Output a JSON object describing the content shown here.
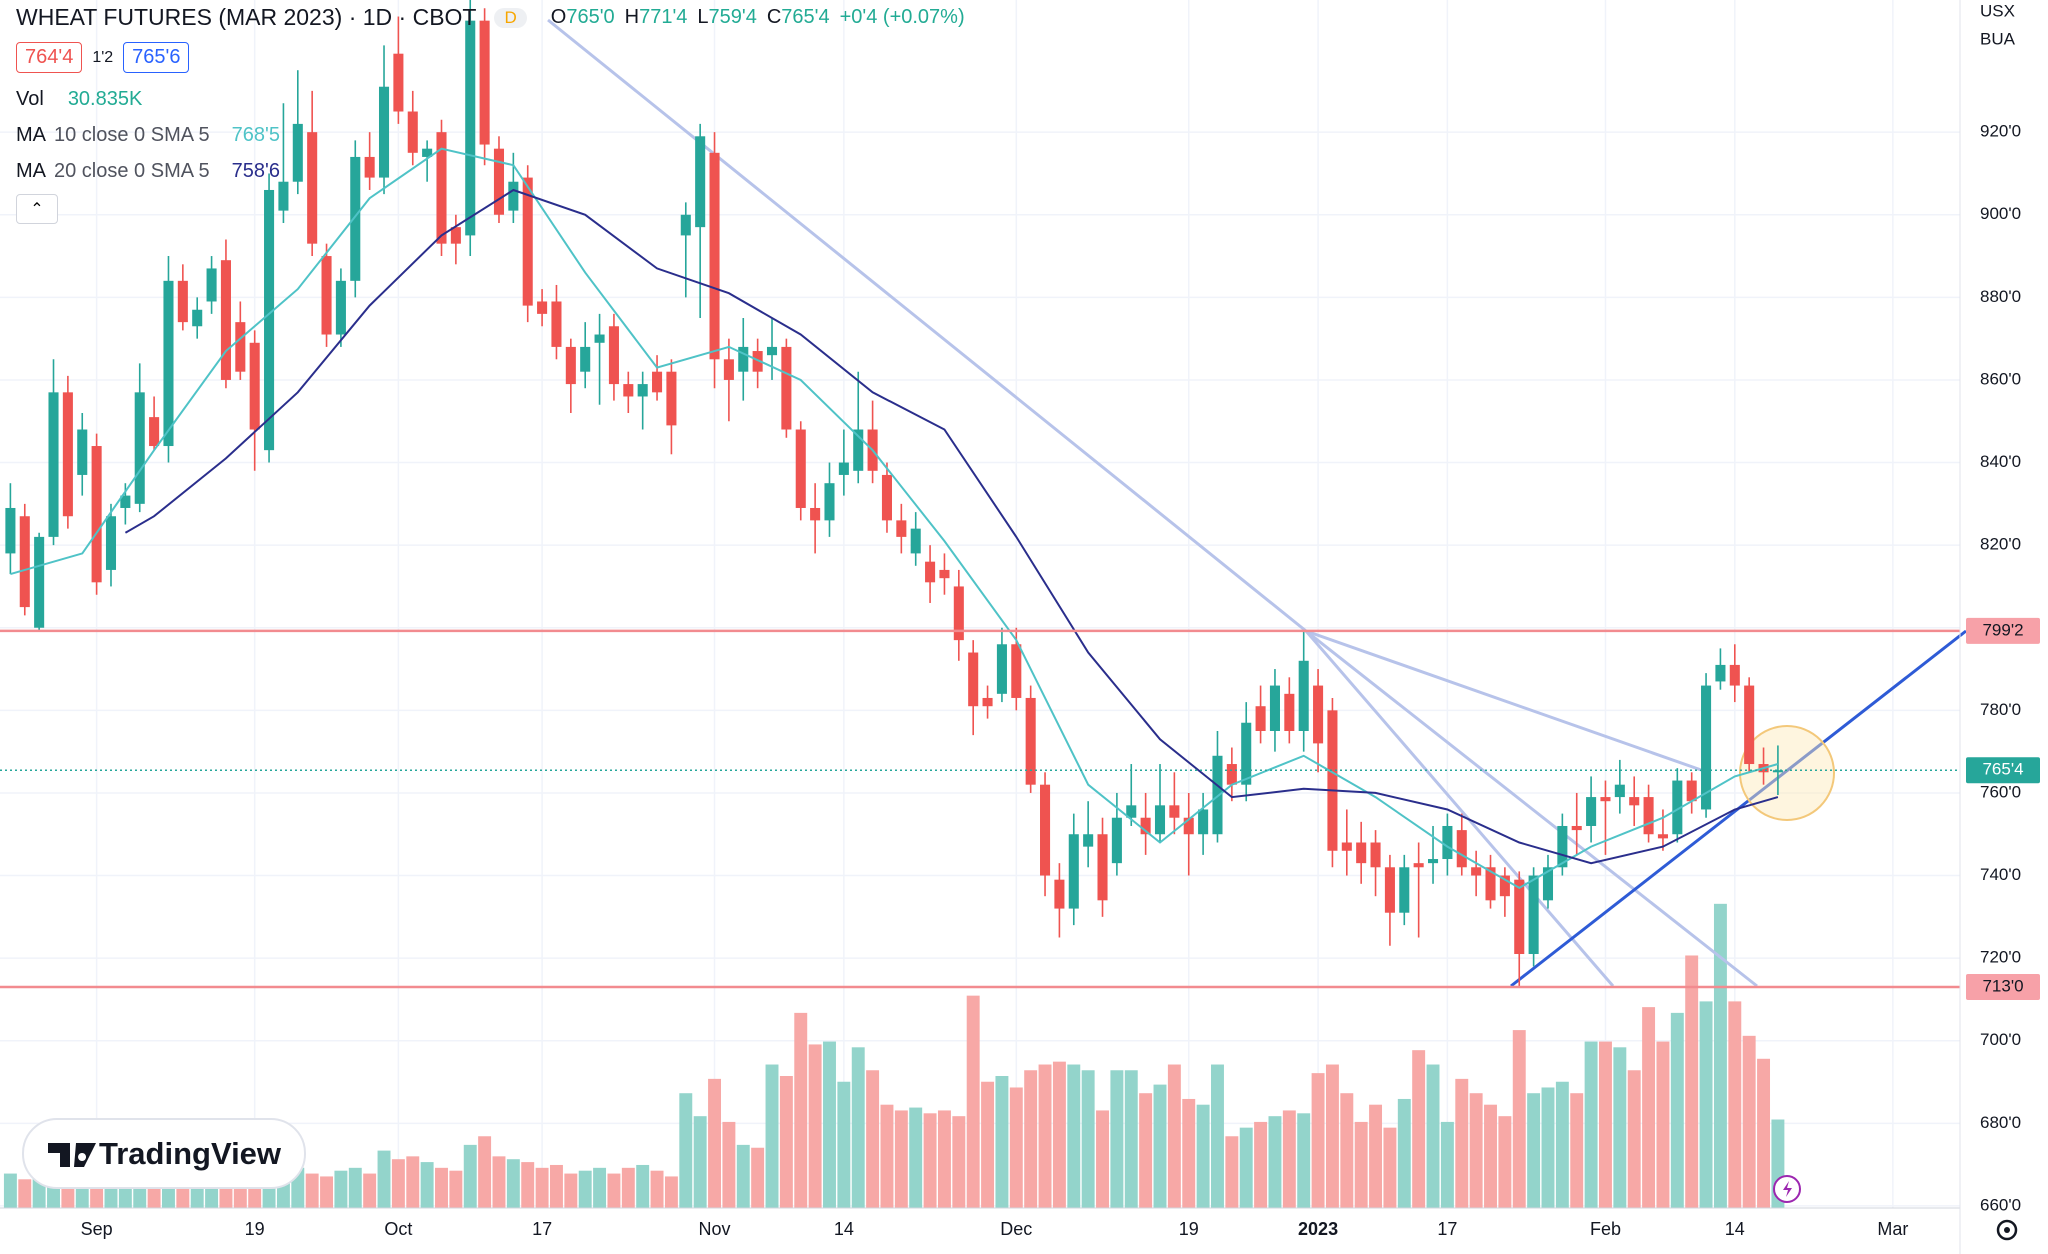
{
  "chart_data": {
    "type": "candlestick",
    "title": "WHEAT FUTURES (MAR 2023) · 1D · CBOT",
    "interval_badge": "D",
    "ohlc_legend": [
      {
        "key": "O",
        "value": "765'0"
      },
      {
        "key": "H",
        "value": "771'4"
      },
      {
        "key": "L",
        "value": "759'4"
      },
      {
        "key": "C",
        "value": "765'4"
      }
    ],
    "change": "+0'4 (+0.07%)",
    "bid": "764'4",
    "spread": "1'2",
    "ask": "765'6",
    "volume_legend": {
      "label": "Vol",
      "value": "30.835K"
    },
    "currency": "USX",
    "unit": "BUA",
    "logo": "TradingView",
    "up_color": "#26a69a",
    "down_color": "#ef5350",
    "vol_up_color": "#93d4cb",
    "vol_down_color": "#f7a8a6",
    "open": [
      818,
      827,
      800,
      822,
      857,
      837,
      844,
      814,
      829,
      830,
      851,
      844,
      884,
      873,
      879,
      889,
      874,
      869,
      843,
      901,
      908,
      920,
      890,
      871,
      884,
      914,
      909,
      939,
      925,
      914,
      920,
      897,
      895,
      947,
      916,
      901,
      909,
      879,
      879,
      868,
      862,
      869,
      873,
      859,
      856,
      862,
      862,
      895,
      897,
      915,
      865,
      862,
      867,
      866,
      868,
      848,
      829,
      826,
      837,
      838,
      848,
      837,
      826,
      818,
      816,
      814,
      810,
      794,
      783,
      784,
      796,
      783,
      762,
      739,
      732,
      747,
      750,
      743,
      754,
      754,
      750,
      757,
      754,
      750,
      750,
      767,
      762,
      781,
      775,
      784,
      775,
      786,
      780,
      748,
      748,
      748,
      742,
      731,
      743,
      743,
      744,
      751,
      742,
      742,
      740,
      739,
      721,
      734,
      742,
      752,
      752,
      759,
      759,
      759,
      759,
      750,
      750,
      763,
      756,
      787,
      791,
      786,
      767,
      765
    ],
    "high": [
      835,
      830,
      823,
      865,
      861,
      852,
      847,
      830,
      835,
      864,
      856,
      890,
      888,
      880,
      890,
      894,
      879,
      872,
      910,
      927,
      935,
      930,
      893,
      887,
      918,
      920,
      941,
      948,
      930,
      918,
      923,
      900,
      952,
      950,
      919,
      915,
      912,
      882,
      883,
      870,
      874,
      876,
      876,
      862,
      862,
      866,
      865,
      903,
      922,
      920,
      870,
      875,
      870,
      875,
      870,
      850,
      835,
      840,
      848,
      862,
      855,
      840,
      830,
      828,
      820,
      818,
      814,
      797,
      786,
      800,
      800,
      786,
      765,
      743,
      755,
      758,
      754,
      760,
      767,
      760,
      767,
      765,
      760,
      760,
      775,
      771,
      782,
      786,
      790,
      788,
      799,
      790,
      783,
      756,
      753,
      751,
      745,
      745,
      748,
      752,
      755,
      755,
      746,
      745,
      742,
      741,
      742,
      745,
      755,
      760,
      764,
      763,
      768,
      764,
      762,
      756,
      766,
      765,
      789,
      795,
      796,
      788,
      771,
      771.5
    ],
    "low": [
      813,
      803,
      799,
      820,
      824,
      832,
      808,
      810,
      825,
      828,
      843,
      840,
      872,
      870,
      876,
      858,
      860,
      838,
      840,
      898,
      905,
      890,
      868,
      868,
      880,
      906,
      905,
      922,
      912,
      908,
      890,
      888,
      890,
      912,
      898,
      898,
      874,
      873,
      865,
      852,
      858,
      854,
      855,
      852,
      848,
      855,
      842,
      880,
      875,
      858,
      850,
      855,
      858,
      860,
      846,
      826,
      818,
      822,
      832,
      835,
      835,
      823,
      818,
      815,
      806,
      808,
      792,
      774,
      778,
      782,
      780,
      760,
      735,
      725,
      728,
      742,
      730,
      740,
      752,
      745,
      748,
      750,
      740,
      745,
      748,
      758,
      758,
      772,
      770,
      772,
      770,
      765,
      742,
      740,
      738,
      735,
      723,
      728,
      725,
      738,
      740,
      740,
      735,
      732,
      730,
      713,
      718,
      732,
      740,
      745,
      748,
      745,
      755,
      752,
      748,
      746,
      748,
      755,
      754,
      785,
      782,
      765,
      762,
      759.5
    ],
    "close": [
      829,
      805,
      822,
      857,
      827,
      848,
      811,
      827,
      832,
      857,
      844,
      884,
      874,
      877,
      887,
      860,
      862,
      848,
      906,
      908,
      922,
      893,
      871,
      884,
      914,
      909,
      931,
      925,
      915,
      916,
      893,
      893,
      947,
      917,
      900,
      908,
      878,
      876,
      868,
      859,
      868,
      871,
      859,
      856,
      859,
      857,
      849,
      900,
      919,
      865,
      860,
      868,
      862,
      868,
      848,
      829,
      826,
      835,
      840,
      848,
      838,
      826,
      822,
      824,
      811,
      812,
      797,
      781,
      781,
      796,
      783,
      762,
      740,
      732,
      750,
      750,
      734,
      754,
      757,
      750,
      757,
      754,
      750,
      756,
      769,
      762,
      777,
      775,
      786,
      775,
      792,
      772,
      746,
      746,
      743,
      742,
      731,
      742,
      742,
      744,
      752,
      742,
      740,
      734,
      735,
      721,
      740,
      742,
      752,
      751,
      759,
      758,
      762,
      757,
      750,
      749,
      763,
      758,
      786,
      791,
      786,
      767,
      765,
      765.5
    ],
    "volume": [
      12,
      10,
      11,
      13,
      14,
      12,
      11,
      10,
      13,
      12,
      11,
      14,
      12,
      10,
      11,
      13,
      12,
      14,
      15,
      13,
      14,
      12,
      11,
      13,
      14,
      12,
      20,
      17,
      18,
      16,
      14,
      13,
      22,
      25,
      18,
      17,
      16,
      14,
      15,
      12,
      13,
      14,
      12,
      14,
      15,
      13,
      11,
      40,
      32,
      45,
      30,
      22,
      21,
      50,
      46,
      68,
      57,
      58,
      44,
      56,
      48,
      36,
      34,
      35,
      33,
      34,
      32,
      74,
      44,
      46,
      42,
      48,
      50,
      51,
      50,
      48,
      34,
      48,
      48,
      40,
      43,
      50,
      38,
      36,
      50,
      25,
      28,
      30,
      32,
      34,
      33,
      47,
      50,
      40,
      30,
      36,
      28,
      38,
      55,
      50,
      30,
      45,
      40,
      36,
      32,
      62,
      40,
      42,
      44,
      40,
      58,
      58,
      56,
      48,
      70,
      58,
      68,
      88,
      72,
      106,
      72,
      60,
      52,
      30.835
    ],
    "volume_lim": [
      0,
      115
    ],
    "moving_averages": [
      {
        "label": "MA",
        "params": "10 close 0 SMA 5",
        "last": "768'5",
        "color": "#4fc3c7",
        "x": [
          0,
          5,
          10,
          15,
          20,
          25,
          30,
          35,
          40,
          45,
          50,
          55,
          60,
          65,
          70,
          75,
          80,
          85,
          90,
          95,
          100,
          105,
          110,
          115,
          120,
          123
        ],
        "values": [
          813,
          818,
          843,
          867,
          882,
          904,
          916,
          912,
          886,
          863,
          868,
          860,
          843,
          821,
          797,
          762,
          748,
          762,
          769,
          759,
          747,
          737,
          747,
          754,
          764,
          767
        ]
      },
      {
        "label": "MA",
        "params": "20 close 0 SMA 5",
        "last": "758'6",
        "color": "#2a2e8c",
        "x": [
          8,
          10,
          15,
          20,
          25,
          30,
          35,
          40,
          45,
          50,
          55,
          60,
          65,
          70,
          75,
          80,
          85,
          90,
          95,
          100,
          105,
          110,
          115,
          120,
          123
        ],
        "values": [
          823,
          827,
          841,
          857,
          878,
          895,
          906,
          900,
          887,
          881,
          871,
          857,
          848,
          822,
          794,
          773,
          759,
          761,
          760,
          756,
          748,
          743,
          747,
          756,
          759
        ]
      }
    ],
    "levels": [
      {
        "value": 799.25,
        "label": "799'2"
      },
      {
        "value": 713,
        "label": "713'0"
      }
    ],
    "last_price": {
      "value": 765.5,
      "label": "765'4"
    },
    "ylim": [
      659.5,
      952
    ],
    "yticks": [
      {
        "value": 660,
        "label": "660'0"
      },
      {
        "value": 680,
        "label": "680'0"
      },
      {
        "value": 700,
        "label": "700'0"
      },
      {
        "value": 720,
        "label": "720'0"
      },
      {
        "value": 740,
        "label": "740'0"
      },
      {
        "value": 760,
        "label": "760'0"
      },
      {
        "value": 780,
        "label": "780'0"
      },
      {
        "value": 800,
        "label": "800'0"
      },
      {
        "value": 820,
        "label": "820'0"
      },
      {
        "value": 840,
        "label": "840'0"
      },
      {
        "value": 860,
        "label": "860'0"
      },
      {
        "value": 880,
        "label": "880'0"
      },
      {
        "value": 900,
        "label": "900'0"
      },
      {
        "value": 920,
        "label": "920'0"
      }
    ],
    "xticks": [
      {
        "value": 6,
        "label": "Sep"
      },
      {
        "value": 17,
        "label": "19"
      },
      {
        "value": 27,
        "label": "Oct"
      },
      {
        "value": 37,
        "label": "17"
      },
      {
        "value": 49,
        "label": "Nov"
      },
      {
        "value": 58,
        "label": "14"
      },
      {
        "value": 70,
        "label": "Dec"
      },
      {
        "value": 82,
        "label": "19"
      },
      {
        "value": 91,
        "label": "2023"
      },
      {
        "value": 100,
        "label": "17"
      },
      {
        "value": 111,
        "label": "Feb"
      },
      {
        "value": 120,
        "label": "14"
      },
      {
        "value": 131,
        "label": "Mar"
      }
    ],
    "grid": true
  }
}
